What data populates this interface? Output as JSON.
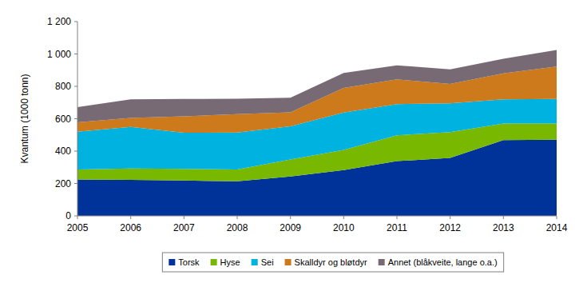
{
  "chart_data": {
    "type": "area",
    "stacked": true,
    "y_label": "Kvantum (1000 tonn)",
    "x": [
      2005,
      2006,
      2007,
      2008,
      2009,
      2010,
      2011,
      2012,
      2013,
      2014
    ],
    "xlim": [
      2005,
      2014
    ],
    "xticks": [
      2005,
      2006,
      2007,
      2008,
      2009,
      2010,
      2011,
      2012,
      2013,
      2014
    ],
    "ylim": [
      0,
      1200
    ],
    "yticks": [
      0,
      200,
      400,
      600,
      800,
      {
        "value": 1000,
        "label": "1 000"
      },
      {
        "value": 1200,
        "label": "1 200"
      }
    ],
    "grid": false,
    "legend": "bottom",
    "series": [
      {
        "name": "Torsk",
        "color": "#003399",
        "values": [
          225,
          222,
          218,
          213,
          243,
          283,
          338,
          358,
          468,
          470
        ]
      },
      {
        "name": "Hyse",
        "color": "#78b800",
        "values": [
          62,
          71,
          72,
          74,
          105,
          125,
          160,
          159,
          102,
          100
        ]
      },
      {
        "name": "Sei",
        "color": "#00b2e0",
        "values": [
          233,
          257,
          223,
          228,
          205,
          230,
          192,
          178,
          150,
          152
        ]
      },
      {
        "name": "Skalldyr og bløtdyr",
        "color": "#cc7a1c",
        "values": [
          58,
          55,
          102,
          113,
          87,
          152,
          153,
          120,
          160,
          200
        ]
      },
      {
        "name": "Annet (blåkveite, lange o.a.)",
        "color": "#786a74",
        "values": [
          94,
          115,
          107,
          95,
          90,
          93,
          87,
          90,
          90,
          103
        ]
      }
    ]
  }
}
